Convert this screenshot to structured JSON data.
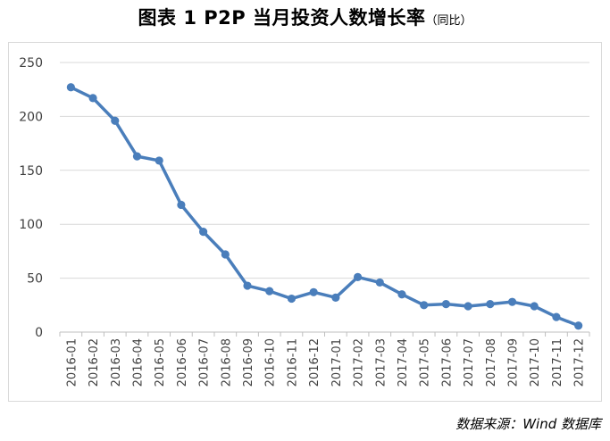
{
  "title": {
    "main": "图表 1  P2P 当月投资人数增长率",
    "sub": "（同比）"
  },
  "source": "数据来源：Wind 数据库",
  "colors": {
    "line": "#4a7ebb",
    "grid": "#d9d9d9",
    "axis": "#bfbfbf",
    "text": "#404040"
  },
  "chart_data": {
    "type": "line",
    "title": "图表 1  P2P 当月投资人数增长率（同比）",
    "xlabel": "",
    "ylabel": "",
    "ylim": [
      0,
      250
    ],
    "yticks": [
      0,
      50,
      100,
      150,
      200,
      250
    ],
    "grid": true,
    "legend": "none",
    "categories": [
      "2016-01",
      "2016-02",
      "2016-03",
      "2016-04",
      "2016-05",
      "2016-06",
      "2016-07",
      "2016-08",
      "2016-09",
      "2016-10",
      "2016-11",
      "2016-12",
      "2017-01",
      "2017-02",
      "2017-03",
      "2017-04",
      "2017-05",
      "2017-06",
      "2017-07",
      "2017-08",
      "2017-09",
      "2017-10",
      "2017-11",
      "2017-12"
    ],
    "series": [
      {
        "values": [
          227,
          217,
          196,
          163,
          159,
          118,
          93,
          72,
          43,
          38,
          31,
          37,
          32,
          51,
          46,
          35,
          25,
          26,
          24,
          26,
          28,
          24,
          14,
          6
        ]
      }
    ]
  }
}
